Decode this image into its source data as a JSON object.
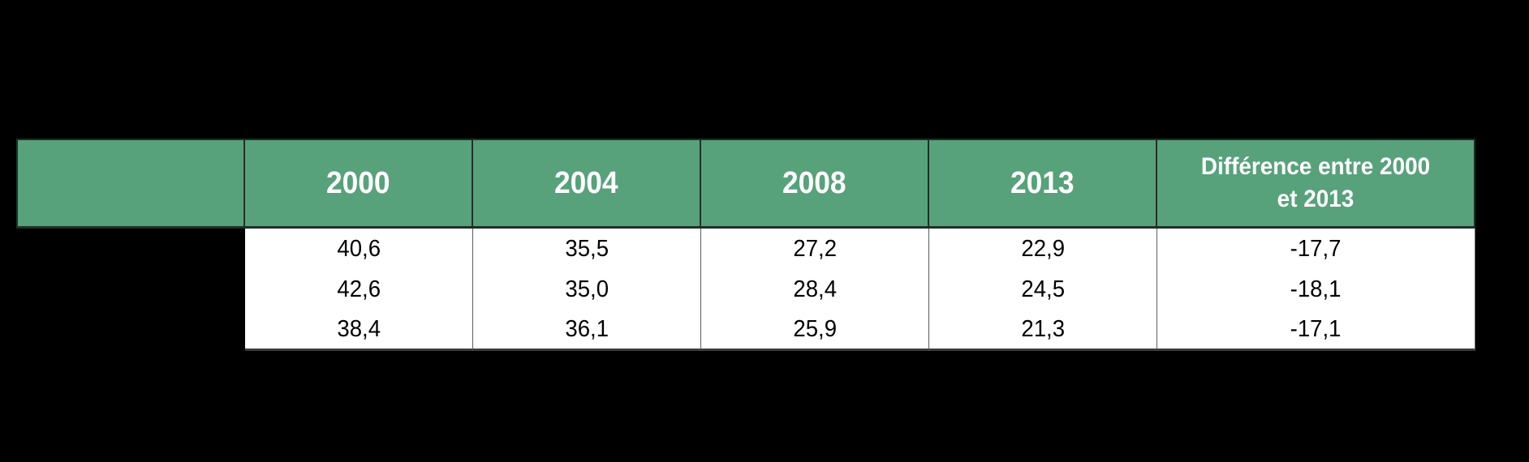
{
  "page": {
    "background": "#000000",
    "description": "Statistics table on black slide; title area and row-label column contain no visible text"
  },
  "colors": {
    "header_bg": "#57A27B",
    "header_text": "#FFFFFF",
    "cell_bg": "#FFFFFF",
    "cell_text": "#000000",
    "grid_line": "#5E5E5E",
    "canvas_bg": "#000000"
  },
  "chart_data": {
    "type": "table",
    "columns": [
      "",
      "2000",
      "2004",
      "2008",
      "2013",
      "Différence entre 2000 et 2013"
    ],
    "rows": [
      [
        "40,6",
        "35,5",
        "27,2",
        "22,9",
        "-17,7"
      ],
      [
        "42,6",
        "35,0",
        "28,4",
        "24,5",
        "-18,1"
      ],
      [
        "38,4",
        "36,1",
        "25,9",
        "21,3",
        "-17,1"
      ]
    ],
    "notes": "Decimal comma formatting; last column is the difference between 2000 and 2013; row labels not visible (black on black)"
  }
}
